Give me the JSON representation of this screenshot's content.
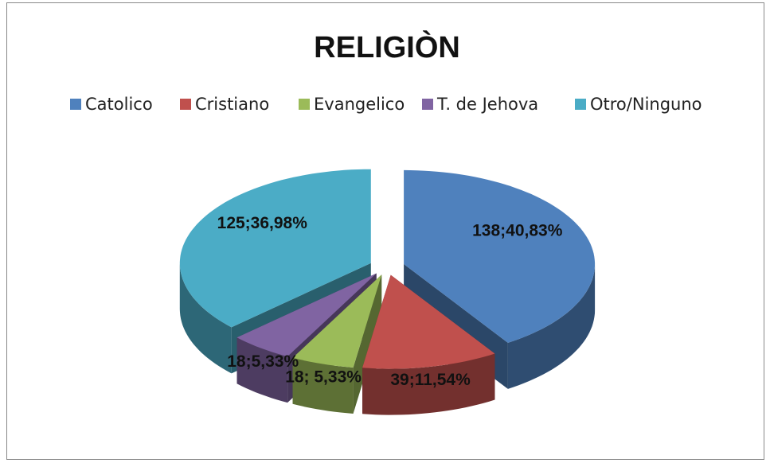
{
  "chart_data": {
    "type": "pie",
    "title": "RELIGIÒN",
    "categories": [
      "Catolico",
      "Cristiano",
      "Evangelico",
      "T. de Jehova",
      "Otro/Ninguno"
    ],
    "values": [
      138,
      39,
      18,
      18,
      125
    ],
    "value_labels": [
      "138;40,83%",
      "39;11,54%",
      "18; 5,33%",
      "18;5,33%",
      "125;36,98%"
    ],
    "colors": [
      "#4f81bd",
      "#c0504d",
      "#9bbb59",
      "#8064a2",
      "#4bacc6"
    ],
    "legend": "top"
  }
}
